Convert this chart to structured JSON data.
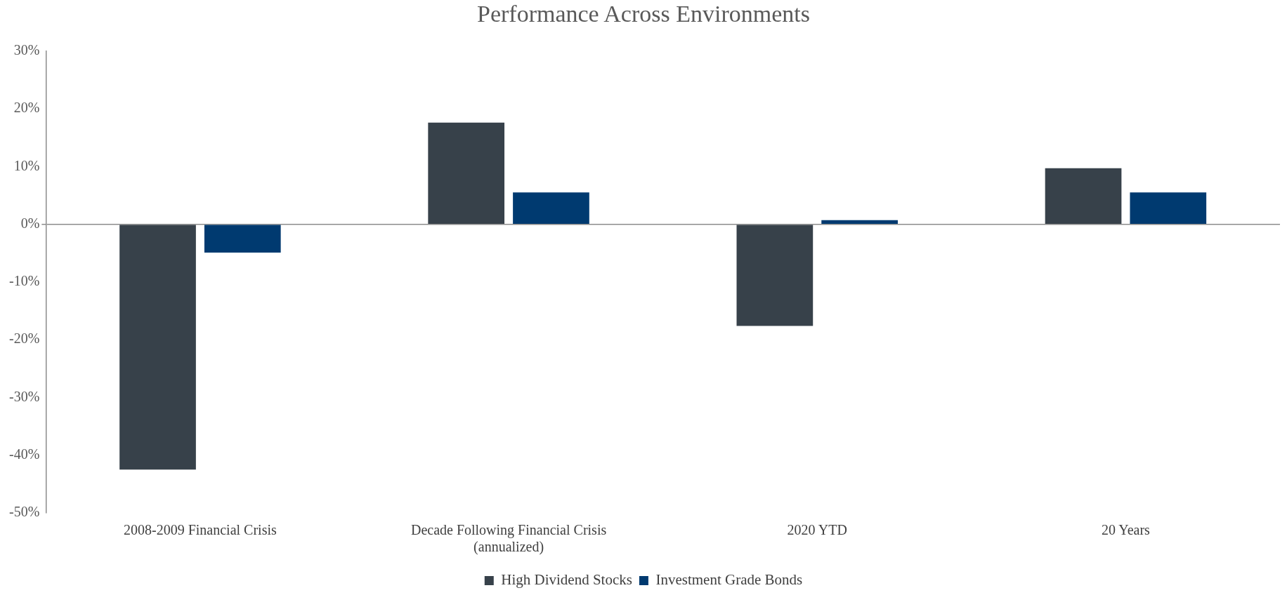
{
  "chart_data": {
    "type": "bar",
    "title": "Performance Across Environments",
    "categories": [
      "2008-2009 Financial Crisis",
      "Decade Following Financial Crisis\n(annualized)",
      "2020 YTD",
      "20 Years"
    ],
    "series": [
      {
        "name": "High Dividend Stocks",
        "color": "#37414a",
        "values": [
          -42.5,
          17.6,
          -17.6,
          9.7
        ]
      },
      {
        "name": "Investment Grade Bonds",
        "color": "#003a70",
        "values": [
          -4.9,
          5.5,
          0.7,
          5.5
        ]
      }
    ],
    "ylim": [
      -50,
      30
    ],
    "yticks": [
      {
        "value": -50,
        "label": "-50%"
      },
      {
        "value": -40,
        "label": "-40%"
      },
      {
        "value": -30,
        "label": "-30%"
      },
      {
        "value": -20,
        "label": "-20%"
      },
      {
        "value": -10,
        "label": "-10%"
      },
      {
        "value": 0,
        "label": "0%"
      },
      {
        "value": 10,
        "label": "10%"
      },
      {
        "value": 20,
        "label": "20%"
      },
      {
        "value": 30,
        "label": "30%"
      }
    ],
    "legend": "bottom"
  }
}
